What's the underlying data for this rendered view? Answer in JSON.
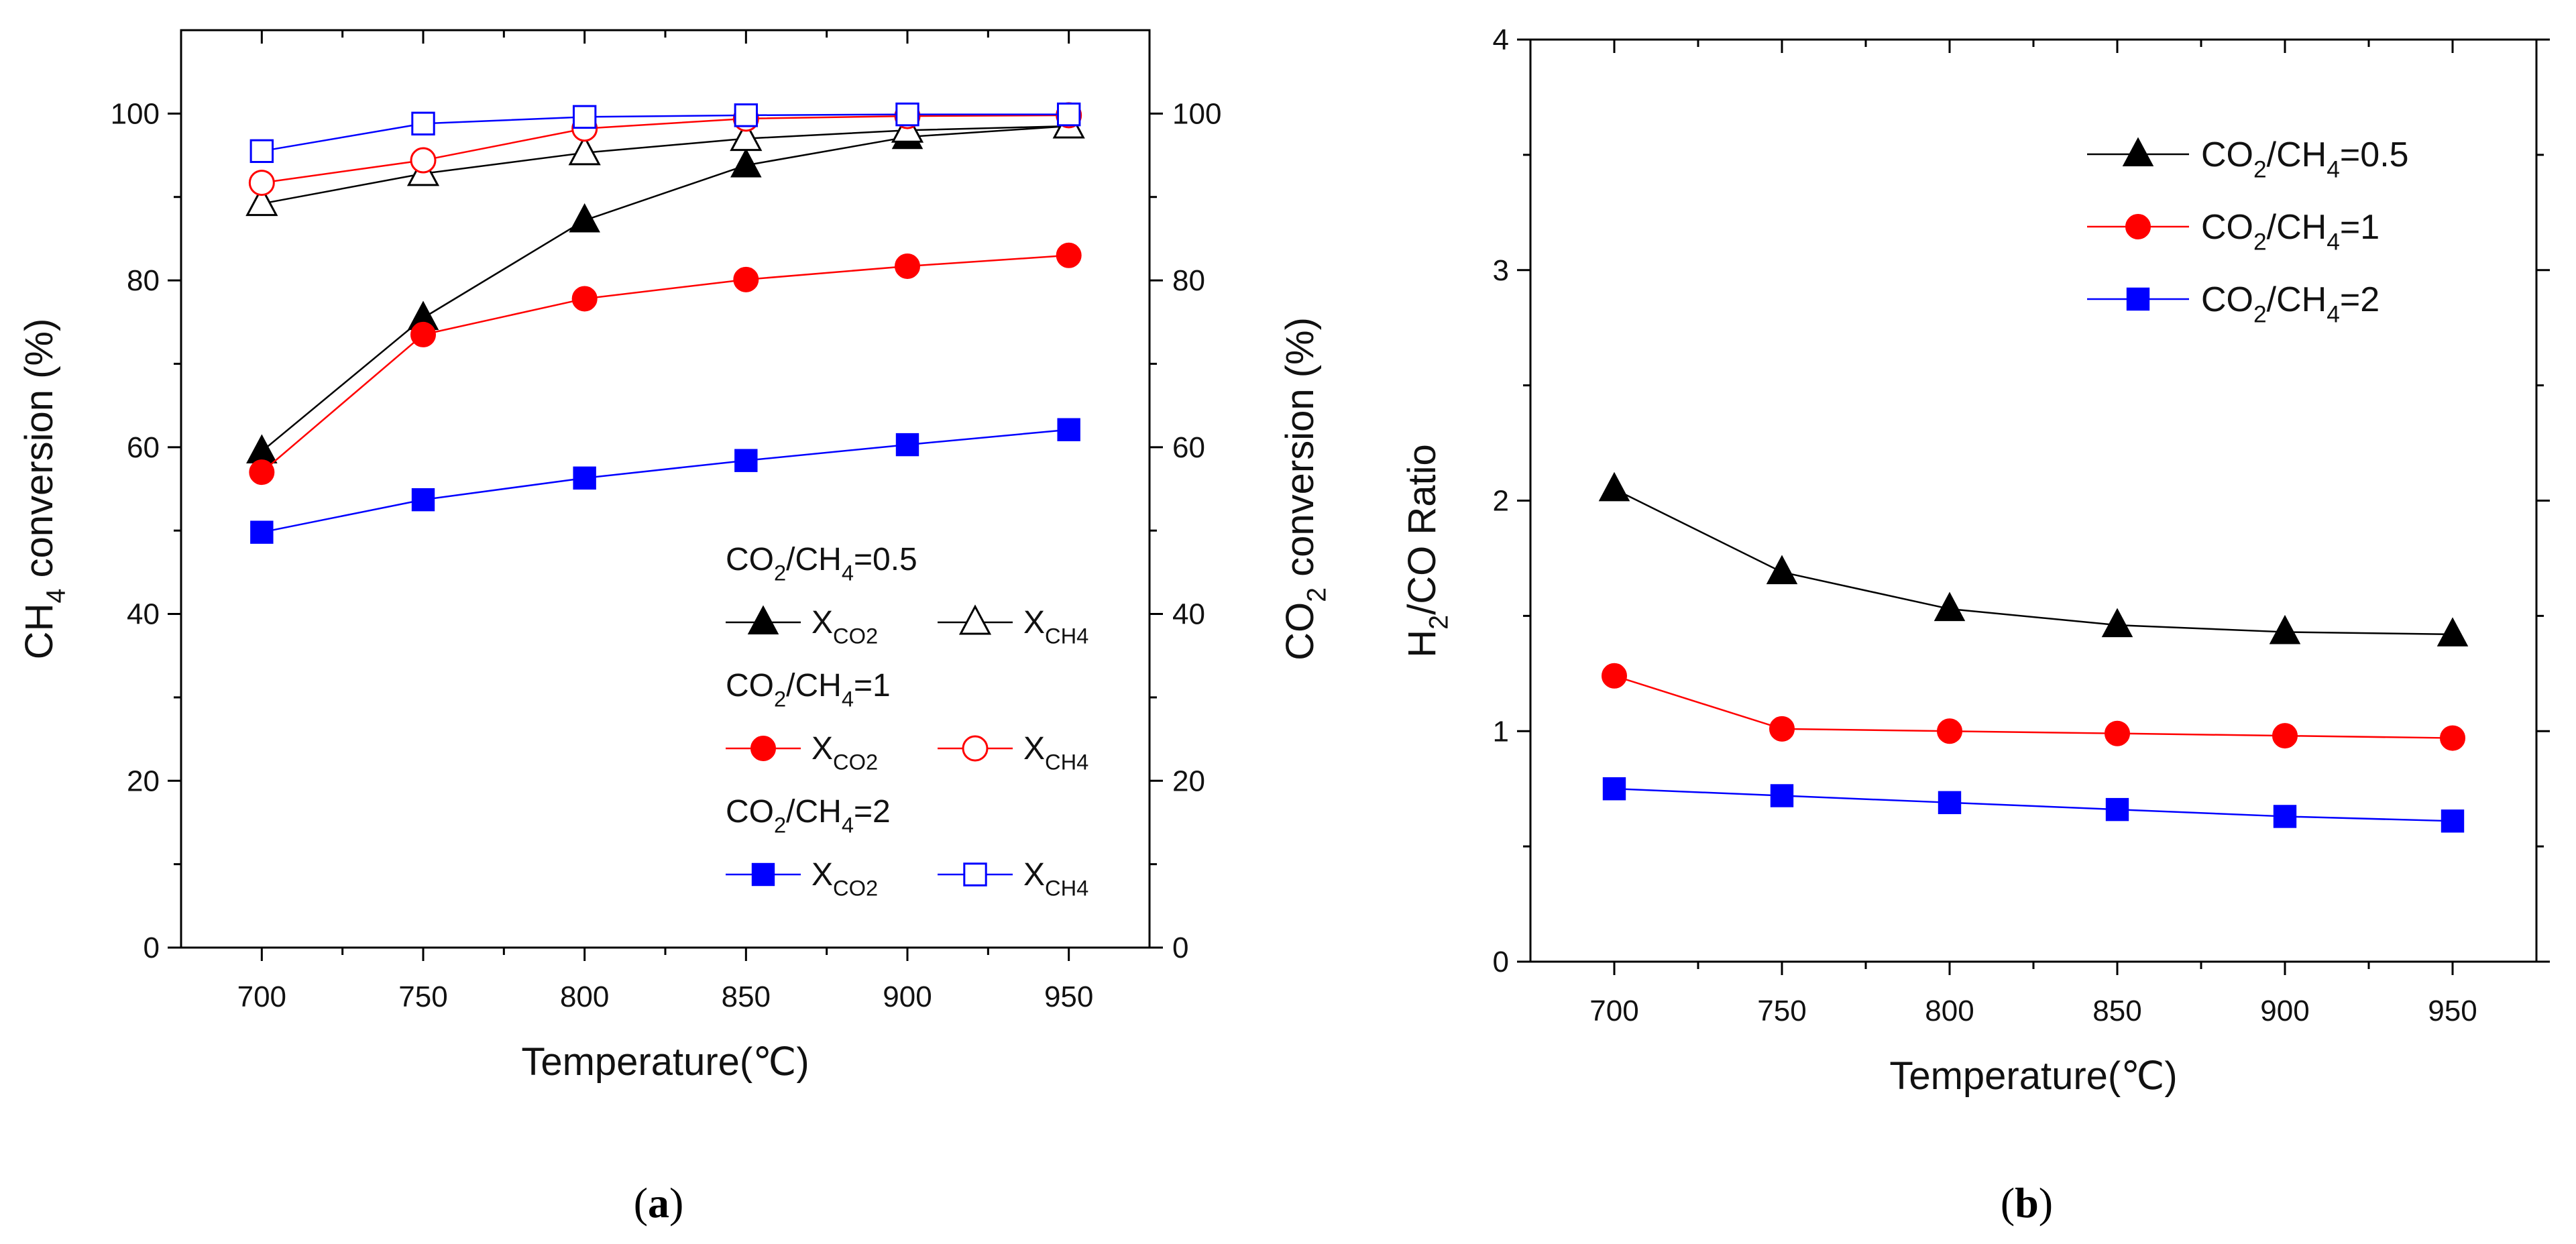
{
  "chart_data": [
    {
      "panel": "a",
      "type": "line",
      "caption_pre": "(",
      "caption_label": "a",
      "caption_post": ")",
      "xlabel": "Temperature(℃)",
      "ylabel_left": {
        "pre": "CH",
        "sub": "4",
        "post": " conversion (%)"
      },
      "ylabel_right": {
        "pre": "CO",
        "sub": "2",
        "post": " conversion (%)"
      },
      "xlim": [
        675,
        975
      ],
      "ylim": [
        0,
        110
      ],
      "x_ticks": [
        700,
        750,
        800,
        850,
        900,
        950
      ],
      "y_ticks": [
        0,
        20,
        40,
        60,
        80,
        100
      ],
      "x_tick_labels": [
        "700",
        "750",
        "800",
        "850",
        "900",
        "950"
      ],
      "y_tick_labels": [
        "0",
        "20",
        "40",
        "60",
        "80",
        "100"
      ],
      "y_tick_labels_right": [
        "0",
        "20",
        "40",
        "60",
        "80",
        "100"
      ],
      "x": [
        700,
        750,
        800,
        850,
        900,
        950
      ],
      "series": [
        {
          "name": "CO2/CH4=0.5 X_CO2",
          "color": "#000000",
          "marker": "triangle",
          "filled": true,
          "values": [
            59.5,
            75.5,
            87.2,
            93.8,
            97.2,
            98.5
          ]
        },
        {
          "name": "CO2/CH4=0.5 X_CH4",
          "color": "#000000",
          "marker": "triangle",
          "filled": false,
          "values": [
            89.2,
            92.8,
            95.3,
            97.0,
            98.0,
            98.5
          ]
        },
        {
          "name": "CO2/CH4=1 X_CO2",
          "color": "#ff0000",
          "marker": "circle",
          "filled": true,
          "values": [
            57.0,
            73.5,
            77.8,
            80.1,
            81.7,
            83.0
          ]
        },
        {
          "name": "CO2/CH4=1 X_CH4",
          "color": "#ff0000",
          "marker": "circle",
          "filled": false,
          "values": [
            91.7,
            94.4,
            98.2,
            99.4,
            99.7,
            99.8
          ]
        },
        {
          "name": "CO2/CH4=2 X_CO2",
          "color": "#0000ff",
          "marker": "square",
          "filled": true,
          "values": [
            49.8,
            53.7,
            56.3,
            58.4,
            60.3,
            62.1
          ]
        },
        {
          "name": "CO2/CH4=2 X_CH4",
          "color": "#0000ff",
          "marker": "square",
          "filled": false,
          "values": [
            95.5,
            98.8,
            99.6,
            99.8,
            99.9,
            99.9
          ]
        }
      ],
      "legend": {
        "placement": "bottom-right",
        "groups": [
          {
            "title_pre": "CO",
            "title_sub1": "2",
            "title_mid": "/CH",
            "title_sub2": "4",
            "title_post": "=0.5",
            "entries": [
              {
                "pre": "X",
                "sub": "CO2",
                "series": 0
              },
              {
                "pre": "X",
                "sub": "CH4",
                "series": 1
              }
            ]
          },
          {
            "title_pre": "CO",
            "title_sub1": "2",
            "title_mid": "/CH",
            "title_sub2": "4",
            "title_post": "=1",
            "entries": [
              {
                "pre": "X",
                "sub": "CO2",
                "series": 2
              },
              {
                "pre": "X",
                "sub": "CH4",
                "series": 3
              }
            ]
          },
          {
            "title_pre": "CO",
            "title_sub1": "2",
            "title_mid": "/CH",
            "title_sub2": "4",
            "title_post": "=2",
            "entries": [
              {
                "pre": "X",
                "sub": "CO2",
                "series": 4
              },
              {
                "pre": "X",
                "sub": "CH4",
                "series": 5
              }
            ]
          }
        ]
      }
    },
    {
      "panel": "b",
      "type": "line",
      "caption_pre": "(",
      "caption_label": "b",
      "caption_post": ")",
      "xlabel": "Temperature(℃)",
      "ylabel": {
        "pre": "H",
        "sub": "2",
        "post": "/CO Ratio"
      },
      "xlim": [
        675,
        975
      ],
      "ylim": [
        0,
        4
      ],
      "x_ticks": [
        700,
        750,
        800,
        850,
        900,
        950
      ],
      "y_ticks": [
        0,
        1,
        2,
        3,
        4
      ],
      "x_tick_labels": [
        "700",
        "750",
        "800",
        "850",
        "900",
        "950"
      ],
      "y_tick_labels": [
        "0",
        "1",
        "2",
        "3",
        "4"
      ],
      "x": [
        700,
        750,
        800,
        850,
        900,
        950
      ],
      "series": [
        {
          "name": "CO2/CH4=0.5",
          "color": "#000000",
          "marker": "triangle",
          "filled": true,
          "values": [
            2.05,
            1.69,
            1.53,
            1.46,
            1.43,
            1.42
          ],
          "legend_pre": "CO",
          "legend_sub1": "2",
          "legend_mid": "/CH",
          "legend_sub2": "4",
          "legend_post": "=0.5"
        },
        {
          "name": "CO2/CH4=1",
          "color": "#ff0000",
          "marker": "circle",
          "filled": true,
          "values": [
            1.24,
            1.01,
            1.0,
            0.99,
            0.98,
            0.97
          ],
          "legend_pre": "CO",
          "legend_sub1": "2",
          "legend_mid": "/CH",
          "legend_sub2": "4",
          "legend_post": "=1"
        },
        {
          "name": "CO2/CH4=2",
          "color": "#0000ff",
          "marker": "square",
          "filled": true,
          "values": [
            0.75,
            0.72,
            0.69,
            0.66,
            0.63,
            0.61
          ],
          "legend_pre": "CO",
          "legend_sub1": "2",
          "legend_mid": "/CH",
          "legend_sub2": "4",
          "legend_post": "=2"
        }
      ],
      "legend": {
        "placement": "top-right"
      }
    }
  ]
}
